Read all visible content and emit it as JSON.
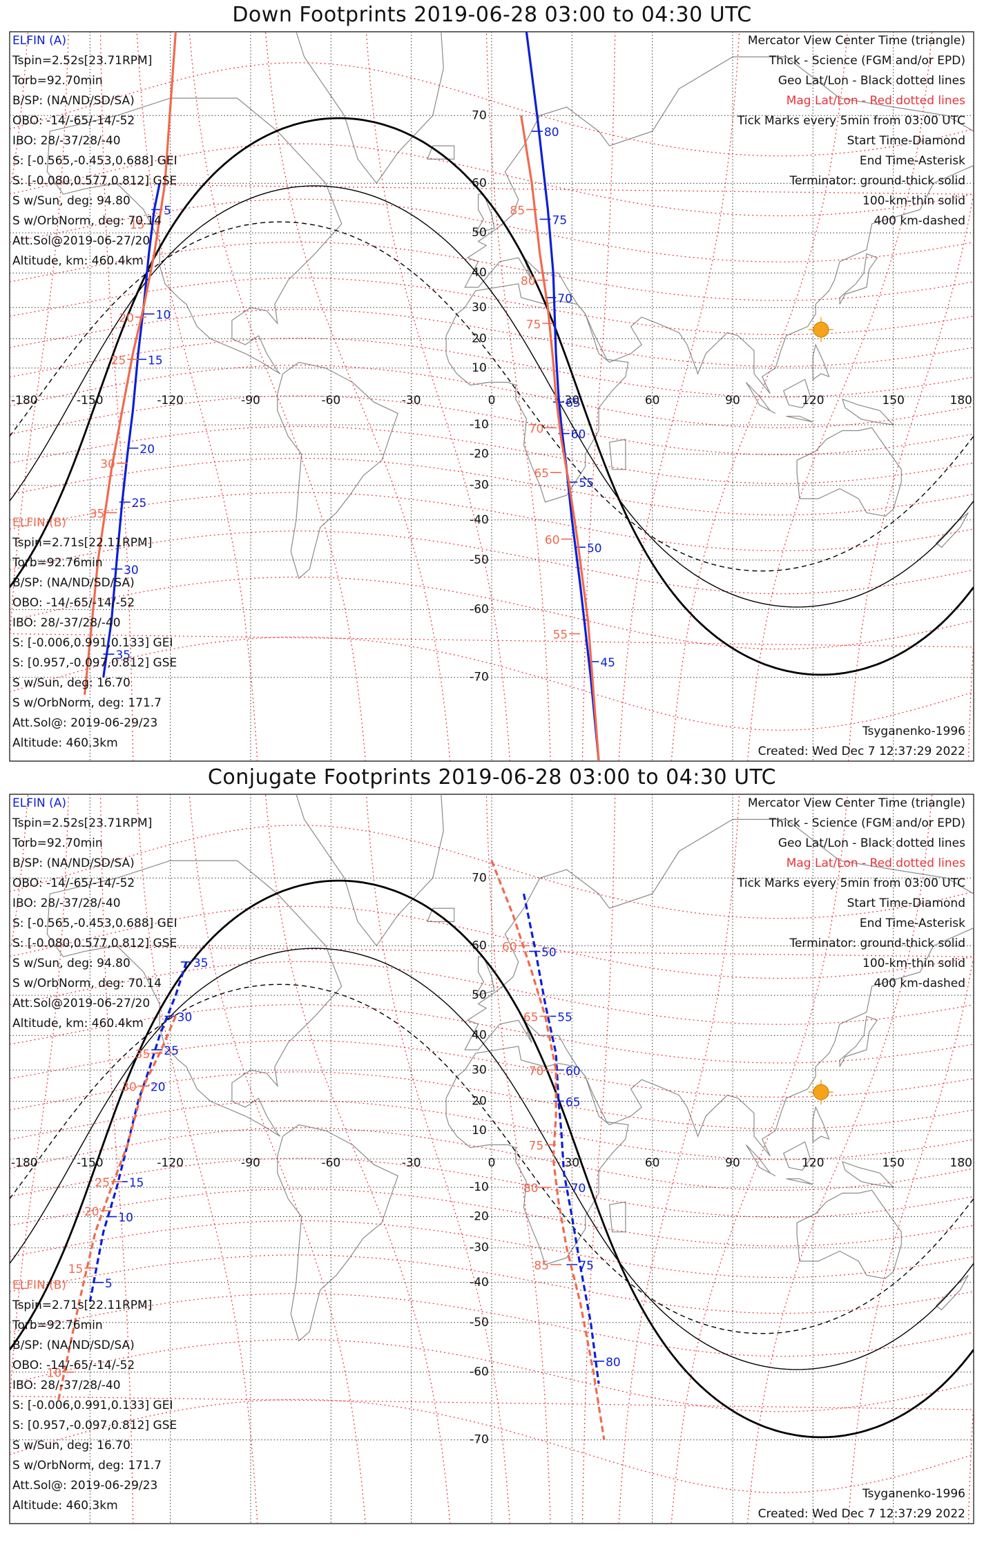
{
  "panels": [
    {
      "title": "Down Footprints 2019-06-28 03:00 to 04:30 UTC",
      "elfin_a": {
        "name": "ELFIN (A)",
        "lines": [
          "Tspin=2.52s[23.71RPM]",
          "Torb=92.70min",
          "B/SP: (NA/ND/SD/SA)",
          "OBO: -14/-65/-14/-52",
          "IBO: 28/-37/28/-40",
          "S: [-0.565,-0.453,0.688] GEI",
          "S: [-0.080,0.577,0.812] GSE",
          "S w/Sun, deg: 94.80",
          "S w/OrbNorm, deg: 70.14",
          "Att.Sol@2019-06-27/20",
          "Altitude, km: 460.4km"
        ]
      },
      "elfin_b": {
        "name": "ELFIN (B)",
        "lines": [
          "Tspin=2.71s[22.11RPM]",
          "Torb=92.76min",
          "B/SP: (NA/ND/SD/SA)",
          "OBO: -14/-65/-14/-52",
          "IBO: 28/-37/28/-40",
          "S: [-0.006,0.991,0.133] GEI",
          "S: [0.957,-0.097,0.812] GSE",
          "S w/Sun, deg: 16.70",
          "S w/OrbNorm, deg: 171.7",
          "Att.Sol@: 2019-06-29/23",
          "Altitude: 460.3km"
        ]
      },
      "legend": [
        "Mercator View Center Time (triangle)",
        "Thick - Science (FGM and/or EPD)",
        "Geo Lat/Lon - Black dotted lines",
        "Mag Lat/Lon - Red dotted lines",
        "Tick Marks every 5min from 03:00 UTC",
        "Start Time-Diamond",
        "End Time-Asterisk",
        "Terminator: ground-thick solid",
        "100-km-thin solid",
        "400 km-dashed"
      ],
      "model": "Tsyganenko-1996",
      "created": "Created: Wed Dec  7 12:37:29 2022"
    },
    {
      "title": "Conjugate Footprints 2019-06-28 03:00 to 04:30 UTC",
      "elfin_a": {
        "name": "ELFIN (A)",
        "lines": [
          "Tspin=2.52s[23.71RPM]",
          "Torb=92.70min",
          "B/SP: (NA/ND/SD/SA)",
          "OBO: -14/-65/-14/-52",
          "IBO: 28/-37/28/-40",
          "S: [-0.565,-0.453,0.688] GEI",
          "S: [-0.080,0.577,0.812] GSE",
          "S w/Sun, deg: 94.80",
          "S w/OrbNorm, deg: 70.14",
          "Att.Sol@2019-06-27/20",
          "Altitude, km: 460.4km"
        ]
      },
      "elfin_b": {
        "name": "ELFIN (B)",
        "lines": [
          "Tspin=2.71s[22.11RPM]",
          "Torb=92.76min",
          "B/SP: (NA/ND/SD/SA)",
          "OBO: -14/-65/-14/-52",
          "IBO: 28/-37/28/-40",
          "S: [-0.006,0.991,0.133] GEI",
          "S: [0.957,-0.097,0.812] GSE",
          "S w/Sun, deg: 16.70",
          "S w/OrbNorm, deg: 171.7",
          "Att.Sol@: 2019-06-29/23",
          "Altitude: 460.3km"
        ]
      },
      "legend": [
        "Mercator View Center Time (triangle)",
        "Thick - Science (FGM and/or EPD)",
        "Geo Lat/Lon - Black dotted lines",
        "Mag Lat/Lon - Red dotted lines",
        "Tick Marks every 5min from 03:00 UTC",
        "Start Time-Diamond",
        "End Time-Asterisk",
        "Terminator: ground-thick solid",
        "100-km-thin solid",
        "400 km-dashed"
      ],
      "model": "Tsyganenko-1996",
      "created": "Created: Wed Dec  7 12:37:29 2022"
    }
  ],
  "colors": {
    "elfin_a": "#0b1fd6",
    "elfin_b": "#f06a4e",
    "mag_grid": "#e8323a",
    "geo_grid": "#333333",
    "sun": "#f5a31a",
    "terminator": "#000000"
  },
  "chart_data": [
    {
      "type": "scatter",
      "name": "down_footprints",
      "xticks": [
        -180,
        -150,
        -120,
        -90,
        -60,
        -30,
        0,
        30,
        60,
        90,
        120,
        150,
        180
      ],
      "yticks": [
        -70,
        -60,
        -50,
        -40,
        -30,
        -20,
        -10,
        0,
        10,
        20,
        30,
        40,
        50,
        60,
        70
      ],
      "xlim": [
        -180,
        180
      ],
      "ylim": [
        -78,
        78
      ],
      "sun": {
        "lon": 123,
        "lat": 23
      },
      "terminator_center_lon": 123,
      "series": [
        {
          "name": "ELFIN (A)",
          "pass1": {
            "lon": [
              -124,
              -126,
              -128,
              -130,
              -132,
              -134,
              -136,
              -138,
              -140,
              -142,
              -145
            ],
            "lat": [
              60,
              55,
              45,
              30,
              15,
              -5,
              -20,
              -35,
              -50,
              -62,
              -70
            ]
          },
          "pass2": {
            "lon": [
              13,
              17,
              21,
              23,
              24,
              25,
              26,
              28,
              30,
              33,
              37,
              40
            ],
            "lat": [
              78,
              70,
              55,
              40,
              15,
              0,
              -10,
              -25,
              -40,
              -55,
              -70,
              -78
            ]
          },
          "ticks_pass1": [
            {
              "label": "5",
              "lon": -125,
              "lat": 55
            },
            {
              "label": "10",
              "lon": -128,
              "lat": 28
            },
            {
              "label": "15",
              "lon": -131,
              "lat": 13
            },
            {
              "label": "20",
              "lon": -134,
              "lat": -18
            },
            {
              "label": "25",
              "lon": -137,
              "lat": -35
            },
            {
              "label": "30",
              "lon": -140,
              "lat": -52
            },
            {
              "label": "35",
              "lon": -143,
              "lat": -67
            }
          ],
          "ticks_pass2": [
            {
              "label": "80",
              "lon": 17,
              "lat": 68
            },
            {
              "label": "75",
              "lon": 20,
              "lat": 53
            },
            {
              "label": "70",
              "lon": 22,
              "lat": 33
            },
            {
              "label": "65",
              "lon": 25,
              "lat": -2
            },
            {
              "label": "60",
              "lon": 27,
              "lat": -13
            },
            {
              "label": "55",
              "lon": 30,
              "lat": -29
            },
            {
              "label": "50",
              "lon": 33,
              "lat": -47
            },
            {
              "label": "45",
              "lon": 38,
              "lat": -68
            }
          ]
        },
        {
          "name": "ELFIN (B)",
          "pass1": {
            "lon": [
              -118,
              -122,
              -126,
              -130,
              -134,
              -138,
              -142,
              -147,
              -152
            ],
            "lat": [
              78,
              60,
              45,
              30,
              15,
              -5,
              -25,
              -50,
              -72
            ]
          },
          "pass2": {
            "lon": [
              11,
              15,
              18,
              21,
              23,
              24,
              26,
              29,
              32,
              36,
              40
            ],
            "lat": [
              70,
              60,
              45,
              30,
              12,
              0,
              -15,
              -30,
              -45,
              -62,
              -78
            ]
          },
          "ticks_pass1": [
            {
              "label": "15",
              "lon": -127,
              "lat": 52
            },
            {
              "label": "20",
              "lon": -131,
              "lat": 27
            },
            {
              "label": "25",
              "lon": -134,
              "lat": 13
            },
            {
              "label": "30",
              "lon": -138,
              "lat": -23
            },
            {
              "label": "35",
              "lon": -142,
              "lat": -38
            }
          ],
          "ticks_pass2": [
            {
              "label": "85",
              "lon": 15,
              "lat": 55
            },
            {
              "label": "80",
              "lon": 19,
              "lat": 38
            },
            {
              "label": "75",
              "lon": 21,
              "lat": 25
            },
            {
              "label": "70",
              "lon": 22,
              "lat": -11
            },
            {
              "label": "65",
              "lon": 24,
              "lat": -26
            },
            {
              "label": "60",
              "lon": 28,
              "lat": -45
            },
            {
              "label": "55",
              "lon": 31,
              "lat": -64
            }
          ]
        }
      ]
    },
    {
      "type": "scatter",
      "name": "conjugate_footprints",
      "xticks": [
        -180,
        -150,
        -120,
        -90,
        -60,
        -30,
        0,
        30,
        60,
        90,
        120,
        150,
        180
      ],
      "yticks": [
        -70,
        -60,
        -50,
        -40,
        -30,
        -20,
        -10,
        0,
        10,
        20,
        30,
        40,
        50,
        60,
        70
      ],
      "xlim": [
        -180,
        180
      ],
      "ylim": [
        -78,
        78
      ],
      "sun": {
        "lon": 123,
        "lat": 23
      },
      "terminator_center_lon": 123,
      "series": [
        {
          "name": "ELFIN (A)",
          "pass1": {
            "lon": [
              -114,
              -118,
              -124,
              -128,
              -132,
              -136,
              -140,
              -145,
              -150
            ],
            "lat": [
              57,
              50,
              40,
              30,
              20,
              5,
              -10,
              -25,
              -45
            ]
          },
          "pass2": {
            "lon": [
              12,
              16,
              20,
              24,
              25,
              26,
              27,
              30,
              33,
              37,
              40
            ],
            "lat": [
              68,
              60,
              48,
              35,
              20,
              10,
              -5,
              -20,
              -35,
              -50,
              -62
            ]
          },
          "ticks_pass1": [
            {
              "label": "35",
              "lon": -114,
              "lat": 57
            },
            {
              "label": "30",
              "lon": -120,
              "lat": 45
            },
            {
              "label": "25",
              "lon": -125,
              "lat": 36
            },
            {
              "label": "20",
              "lon": -130,
              "lat": 25
            },
            {
              "label": "15",
              "lon": -138,
              "lat": -8
            },
            {
              "label": "10",
              "lon": -142,
              "lat": -20
            },
            {
              "label": "5",
              "lon": -147,
              "lat": -40
            }
          ],
          "ticks_pass2": [
            {
              "label": "50",
              "lon": 16,
              "lat": 59
            },
            {
              "label": "55",
              "lon": 22,
              "lat": 45
            },
            {
              "label": "60",
              "lon": 25,
              "lat": 30
            },
            {
              "label": "65",
              "lon": 25,
              "lat": 20
            },
            {
              "label": "70",
              "lon": 27,
              "lat": -10
            },
            {
              "label": "75",
              "lon": 30,
              "lat": -35
            },
            {
              "label": "80",
              "lon": 40,
              "lat": -58
            }
          ]
        },
        {
          "name": "ELFIN (B)",
          "pass1": {
            "lon": [
              -118,
              -124,
              -130,
              -136,
              -142,
              -148,
              -154,
              -162
            ],
            "lat": [
              45,
              35,
              25,
              5,
              -10,
              -25,
              -45,
              -65
            ]
          },
          "pass2": {
            "lon": [
              0,
              8,
              15,
              20,
              24,
              24,
              23,
              25,
              28,
              33,
              38,
              42
            ],
            "lat": [
              72,
              65,
              55,
              45,
              30,
              15,
              0,
              -15,
              -30,
              -45,
              -60,
              -70
            ]
          },
          "ticks_pass1": [
            {
              "label": "35",
              "lon": -125,
              "lat": 35
            },
            {
              "label": "30",
              "lon": -130,
              "lat": 25
            },
            {
              "label": "25",
              "lon": -140,
              "lat": -8
            },
            {
              "label": "20",
              "lon": -144,
              "lat": -18
            },
            {
              "label": "15",
              "lon": -150,
              "lat": -36
            },
            {
              "label": "10",
              "lon": -158,
              "lat": -60
            }
          ],
          "ticks_pass2": [
            {
              "label": "60",
              "lon": 12,
              "lat": 60
            },
            {
              "label": "65",
              "lon": 20,
              "lat": 45
            },
            {
              "label": "70",
              "lon": 22,
              "lat": 30
            },
            {
              "label": "75",
              "lon": 22,
              "lat": 5
            },
            {
              "label": "80",
              "lon": 20,
              "lat": -10
            },
            {
              "label": "85",
              "lon": 24,
              "lat": -35
            }
          ]
        }
      ]
    }
  ]
}
